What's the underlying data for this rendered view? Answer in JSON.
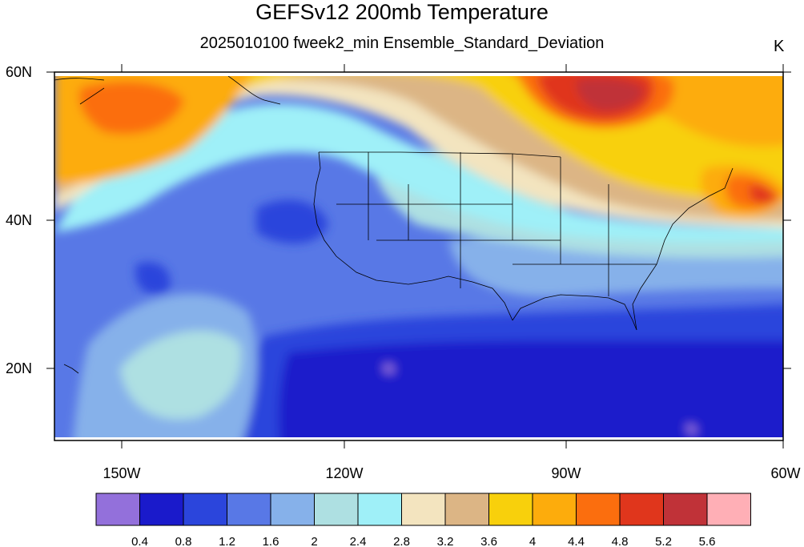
{
  "title": "GEFSv12 200mb Temperature",
  "subtitle": "2025010100 fweek2_min Ensemble_Standard_Deviation",
  "units": "K",
  "map": {
    "lon_ticks": [
      "150W",
      "120W",
      "90W",
      "60W"
    ],
    "lat_ticks": [
      "60N",
      "40N",
      "20N"
    ],
    "lon_range": [
      -159,
      -60
    ],
    "lat_range": [
      10,
      60
    ]
  },
  "colorbar": {
    "colors": [
      "#9370db",
      "#1a1acb",
      "#2b45dc",
      "#5878e6",
      "#86b1ea",
      "#aee0e2",
      "#9ff0f8",
      "#f3e4bf",
      "#dcb585",
      "#f8d00c",
      "#fdac0c",
      "#fb6e0e",
      "#e0361c",
      "#c03238",
      "#ffafb6"
    ],
    "labels": [
      "0.4",
      "0.8",
      "1.2",
      "1.6",
      "2",
      "2.4",
      "2.8",
      "3.2",
      "3.6",
      "4",
      "4.4",
      "4.8",
      "5.2",
      "5.6"
    ]
  }
}
